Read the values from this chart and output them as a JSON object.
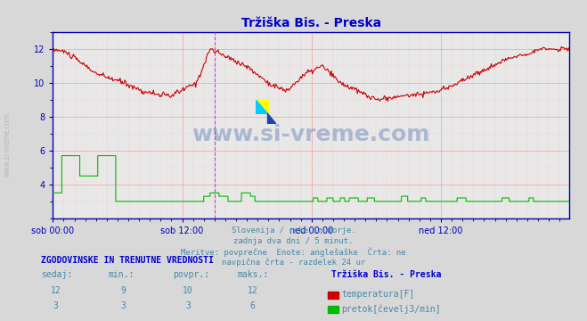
{
  "title": "Tržiška Bis. - Preska",
  "title_color": "#0000cc",
  "bg_color": "#d8d8d8",
  "plot_bg_color": "#e8e8e8",
  "grid_color_major": "#ff9999",
  "grid_color_minor": "#ffcccc",
  "axis_color": "#0000bb",
  "text_color": "#4488aa",
  "watermark": "www.si-vreme.com",
  "subtitle_lines": [
    "Slovenija / reke in morje.",
    "zadnja dva dni / 5 minut.",
    "Meritve: povprečne  Enote: anglešaške  Črta: ne",
    "navpična črta - razdelek 24 ur"
  ],
  "table_header": "ZGODOVINSKE IN TRENUTNE VREDNOSTI",
  "col_headers": [
    "sedaj:",
    "min.:",
    "povpr.:",
    "maks.:"
  ],
  "station_name": "Tržiška Bis. - Preska",
  "row1": [
    12,
    9,
    10,
    12
  ],
  "row2": [
    3,
    3,
    3,
    6
  ],
  "row1_label": "temperatura[F]",
  "row2_label": "pretok[čevelj3/min]",
  "row1_color": "#cc0000",
  "row2_color": "#00bb00",
  "ylim": [
    2,
    13
  ],
  "yticks": [
    4,
    6,
    8,
    10,
    12
  ],
  "xtick_labels": [
    "sob 00:00",
    "sob 12:00",
    "ned 00:00",
    "ned 12:00"
  ],
  "xtick_positions": [
    0,
    144,
    288,
    432
  ],
  "total_points": 576,
  "vline_pos": 180,
  "vline_color": "#cc44cc",
  "border_color": "#0000aa"
}
